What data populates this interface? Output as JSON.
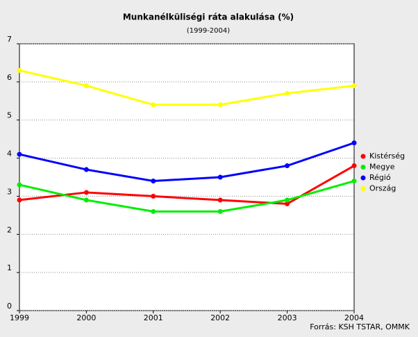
{
  "chart_data": {
    "type": "line",
    "title": "Munkanélküliségi ráta alakulása (%)",
    "subtitle": "(1999-2004)",
    "source": "Forrás: KSH TSTAR, OMMK",
    "x": [
      1999,
      2000,
      2001,
      2002,
      2003,
      2004
    ],
    "series": [
      {
        "name": "Kistérség",
        "color": "#ff0000",
        "values": [
          2.9,
          3.1,
          3.0,
          2.9,
          2.8,
          3.8
        ]
      },
      {
        "name": "Megye",
        "color": "#00ee00",
        "values": [
          3.3,
          2.9,
          2.6,
          2.6,
          2.9,
          3.4
        ]
      },
      {
        "name": "Régió",
        "color": "#0000ff",
        "values": [
          4.1,
          3.7,
          3.4,
          3.5,
          3.8,
          4.4
        ]
      },
      {
        "name": "Ország",
        "color": "#ffff00",
        "values": [
          6.3,
          5.9,
          5.4,
          5.4,
          5.7,
          5.9
        ]
      }
    ],
    "xlim": [
      1999,
      2004
    ],
    "xticks": [
      1999,
      2000,
      2001,
      2002,
      2003,
      2004
    ],
    "ylim": [
      0,
      7
    ],
    "yticks": [
      0,
      1,
      2,
      3,
      4,
      5,
      6,
      7
    ],
    "grid": true
  }
}
